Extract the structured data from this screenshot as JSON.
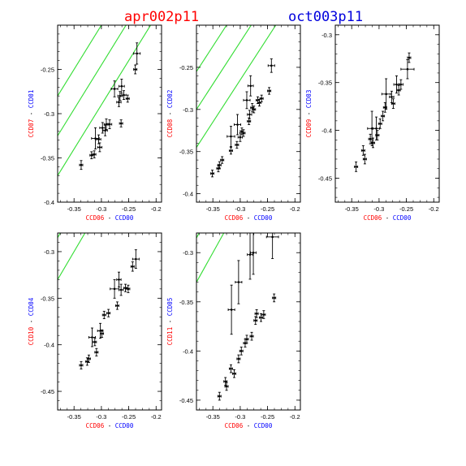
{
  "header": {
    "title_left": "apr002p11",
    "title_right": "oct003p11",
    "title_left_color": "#ff0000",
    "title_right_color": "#0000dd"
  },
  "colors": {
    "red": "#ff0000",
    "blue": "#0000ff",
    "guide_lines": "#33dd33",
    "data": "#000000"
  },
  "chart_data": [
    {
      "type": "scatter",
      "x_label_red": "CCD06",
      "x_label_blue": "CCD00",
      "y_label_red": "CCD07",
      "y_label_blue": "CCD01",
      "xlim": [
        -0.38,
        -0.19
      ],
      "ylim": [
        -0.4,
        -0.2
      ],
      "xticks": [
        -0.35,
        -0.3,
        -0.25,
        -0.2
      ],
      "yticks": [
        -0.4,
        -0.35,
        -0.3,
        -0.25
      ],
      "ytick_labels": [
        "-0.4",
        "-0.35",
        "-0.3",
        "-0.25"
      ],
      "guide_offsets": [
        0.01,
        0.055,
        0.1
      ],
      "points": [
        {
          "x": -0.337,
          "y": -0.358,
          "xerr": 0.003,
          "yerr": 0.005
        },
        {
          "x": -0.318,
          "y": -0.347,
          "xerr": 0.003,
          "yerr": 0.004
        },
        {
          "x": -0.313,
          "y": -0.346,
          "xerr": 0.003,
          "yerr": 0.004
        },
        {
          "x": -0.311,
          "y": -0.328,
          "xerr": 0.007,
          "yerr": 0.012
        },
        {
          "x": -0.305,
          "y": -0.329,
          "xerr": 0.004,
          "yerr": 0.005
        },
        {
          "x": -0.303,
          "y": -0.338,
          "xerr": 0.004,
          "yerr": 0.005
        },
        {
          "x": -0.298,
          "y": -0.316,
          "xerr": 0.005,
          "yerr": 0.006
        },
        {
          "x": -0.293,
          "y": -0.319,
          "xerr": 0.004,
          "yerr": 0.006
        },
        {
          "x": -0.291,
          "y": -0.312,
          "xerr": 0.004,
          "yerr": 0.006
        },
        {
          "x": -0.285,
          "y": -0.312,
          "xerr": 0.004,
          "yerr": 0.005
        },
        {
          "x": -0.276,
          "y": -0.272,
          "xerr": 0.006,
          "yerr": 0.009
        },
        {
          "x": -0.268,
          "y": -0.287,
          "xerr": 0.004,
          "yerr": 0.005
        },
        {
          "x": -0.266,
          "y": -0.28,
          "xerr": 0.004,
          "yerr": 0.005
        },
        {
          "x": -0.264,
          "y": -0.311,
          "xerr": 0.003,
          "yerr": 0.004
        },
        {
          "x": -0.263,
          "y": -0.269,
          "xerr": 0.005,
          "yerr": 0.008
        },
        {
          "x": -0.259,
          "y": -0.279,
          "xerr": 0.004,
          "yerr": 0.005
        },
        {
          "x": -0.252,
          "y": -0.283,
          "xerr": 0.003,
          "yerr": 0.004
        },
        {
          "x": -0.238,
          "y": -0.25,
          "xerr": 0.003,
          "yerr": 0.005
        },
        {
          "x": -0.235,
          "y": -0.232,
          "xerr": 0.006,
          "yerr": 0.012
        }
      ]
    },
    {
      "type": "scatter",
      "x_label_red": "CCD06",
      "x_label_blue": "CCD00",
      "y_label_red": "CCD08",
      "y_label_blue": "CCD02",
      "xlim": [
        -0.38,
        -0.19
      ],
      "ylim": [
        -0.41,
        -0.2
      ],
      "xticks": [
        -0.35,
        -0.3,
        -0.25,
        -0.2
      ],
      "yticks": [
        -0.4,
        -0.35,
        -0.3,
        -0.25
      ],
      "ytick_labels": [
        "-0.4",
        "-0.35",
        "-0.3",
        "-0.25"
      ],
      "guide_offsets": [
        0.035,
        0.08,
        0.125
      ],
      "points": [
        {
          "x": -0.351,
          "y": -0.376,
          "xerr": 0.003,
          "yerr": 0.004
        },
        {
          "x": -0.34,
          "y": -0.37,
          "xerr": 0.003,
          "yerr": 0.004
        },
        {
          "x": -0.338,
          "y": -0.366,
          "xerr": 0.003,
          "yerr": 0.004
        },
        {
          "x": -0.333,
          "y": -0.36,
          "xerr": 0.003,
          "yerr": 0.004
        },
        {
          "x": -0.317,
          "y": -0.349,
          "xerr": 0.003,
          "yerr": 0.004
        },
        {
          "x": -0.317,
          "y": -0.332,
          "xerr": 0.007,
          "yerr": 0.012
        },
        {
          "x": -0.305,
          "y": -0.318,
          "xerr": 0.006,
          "yerr": 0.012
        },
        {
          "x": -0.306,
          "y": -0.342,
          "xerr": 0.003,
          "yerr": 0.004
        },
        {
          "x": -0.3,
          "y": -0.333,
          "xerr": 0.004,
          "yerr": 0.005
        },
        {
          "x": -0.297,
          "y": -0.326,
          "xerr": 0.003,
          "yerr": 0.004
        },
        {
          "x": -0.294,
          "y": -0.328,
          "xerr": 0.003,
          "yerr": 0.004
        },
        {
          "x": -0.288,
          "y": -0.289,
          "xerr": 0.006,
          "yerr": 0.01
        },
        {
          "x": -0.281,
          "y": -0.272,
          "xerr": 0.005,
          "yerr": 0.012
        },
        {
          "x": -0.284,
          "y": -0.314,
          "xerr": 0.003,
          "yerr": 0.004
        },
        {
          "x": -0.283,
          "y": -0.306,
          "xerr": 0.004,
          "yerr": 0.005
        },
        {
          "x": -0.278,
          "y": -0.298,
          "xerr": 0.003,
          "yerr": 0.005
        },
        {
          "x": -0.275,
          "y": -0.3,
          "xerr": 0.003,
          "yerr": 0.004
        },
        {
          "x": -0.268,
          "y": -0.289,
          "xerr": 0.003,
          "yerr": 0.004
        },
        {
          "x": -0.265,
          "y": -0.292,
          "xerr": 0.003,
          "yerr": 0.004
        },
        {
          "x": -0.261,
          "y": -0.287,
          "xerr": 0.003,
          "yerr": 0.004
        },
        {
          "x": -0.247,
          "y": -0.278,
          "xerr": 0.003,
          "yerr": 0.004
        },
        {
          "x": -0.243,
          "y": -0.248,
          "xerr": 0.006,
          "yerr": 0.008
        }
      ]
    },
    {
      "type": "scatter",
      "x_label_red": "CCD06",
      "x_label_blue": "CCD00",
      "y_label_red": "CCD09",
      "y_label_blue": "CCD03",
      "xlim": [
        -0.38,
        -0.19
      ],
      "ylim": [
        -0.475,
        -0.29
      ],
      "xticks": [
        -0.35,
        -0.3,
        -0.25,
        -0.2
      ],
      "yticks": [
        -0.45,
        -0.4,
        -0.35,
        -0.3
      ],
      "ytick_labels": [
        "-0.45",
        "-0.4",
        "-0.35",
        "-0.3"
      ],
      "guide_offsets": [
        0.1,
        0.145,
        0.19
      ],
      "points": [
        {
          "x": -0.342,
          "y": -0.438,
          "xerr": 0.003,
          "yerr": 0.005
        },
        {
          "x": -0.329,
          "y": -0.421,
          "xerr": 0.003,
          "yerr": 0.005
        },
        {
          "x": -0.326,
          "y": -0.43,
          "xerr": 0.003,
          "yerr": 0.005
        },
        {
          "x": -0.313,
          "y": -0.398,
          "xerr": 0.008,
          "yerr": 0.018
        },
        {
          "x": -0.316,
          "y": -0.409,
          "xerr": 0.003,
          "yerr": 0.005
        },
        {
          "x": -0.311,
          "y": -0.413,
          "xerr": 0.003,
          "yerr": 0.005
        },
        {
          "x": -0.305,
          "y": -0.398,
          "xerr": 0.006,
          "yerr": 0.012
        },
        {
          "x": -0.303,
          "y": -0.405,
          "xerr": 0.003,
          "yerr": 0.005
        },
        {
          "x": -0.298,
          "y": -0.393,
          "xerr": 0.003,
          "yerr": 0.005
        },
        {
          "x": -0.293,
          "y": -0.385,
          "xerr": 0.003,
          "yerr": 0.005
        },
        {
          "x": -0.289,
          "y": -0.376,
          "xerr": 0.003,
          "yerr": 0.005
        },
        {
          "x": -0.287,
          "y": -0.362,
          "xerr": 0.008,
          "yerr": 0.016
        },
        {
          "x": -0.277,
          "y": -0.365,
          "xerr": 0.004,
          "yerr": 0.006
        },
        {
          "x": -0.274,
          "y": -0.372,
          "xerr": 0.003,
          "yerr": 0.005
        },
        {
          "x": -0.268,
          "y": -0.352,
          "xerr": 0.005,
          "yerr": 0.009
        },
        {
          "x": -0.264,
          "y": -0.358,
          "xerr": 0.003,
          "yerr": 0.005
        },
        {
          "x": -0.26,
          "y": -0.352,
          "xerr": 0.004,
          "yerr": 0.005
        },
        {
          "x": -0.248,
          "y": -0.336,
          "xerr": 0.012,
          "yerr": 0.01
        },
        {
          "x": -0.245,
          "y": -0.324,
          "xerr": 0.003,
          "yerr": 0.005
        }
      ]
    },
    {
      "type": "scatter",
      "x_label_red": "CCD06",
      "x_label_blue": "CCD00",
      "y_label_red": "CCD10",
      "y_label_blue": "CCD04",
      "xlim": [
        -0.38,
        -0.19
      ],
      "ylim": [
        -0.47,
        -0.28
      ],
      "xticks": [
        -0.35,
        -0.3,
        -0.25,
        -0.2
      ],
      "yticks": [
        -0.45,
        -0.4,
        -0.35,
        -0.3
      ],
      "ytick_labels": [
        "-0.45",
        "-0.4",
        "-0.35",
        "-0.3"
      ],
      "guide_offsets": [
        0.05,
        0.095,
        0.14
      ],
      "points": [
        {
          "x": -0.337,
          "y": -0.422,
          "xerr": 0.003,
          "yerr": 0.004
        },
        {
          "x": -0.326,
          "y": -0.418,
          "xerr": 0.003,
          "yerr": 0.004
        },
        {
          "x": -0.323,
          "y": -0.415,
          "xerr": 0.003,
          "yerr": 0.004
        },
        {
          "x": -0.317,
          "y": -0.392,
          "xerr": 0.006,
          "yerr": 0.01
        },
        {
          "x": -0.312,
          "y": -0.397,
          "xerr": 0.003,
          "yerr": 0.004
        },
        {
          "x": -0.309,
          "y": -0.408,
          "xerr": 0.003,
          "yerr": 0.004
        },
        {
          "x": -0.302,
          "y": -0.385,
          "xerr": 0.005,
          "yerr": 0.008
        },
        {
          "x": -0.299,
          "y": -0.388,
          "xerr": 0.003,
          "yerr": 0.004
        },
        {
          "x": -0.295,
          "y": -0.368,
          "xerr": 0.003,
          "yerr": 0.004
        },
        {
          "x": -0.287,
          "y": -0.366,
          "xerr": 0.003,
          "yerr": 0.004
        },
        {
          "x": -0.276,
          "y": -0.34,
          "xerr": 0.008,
          "yerr": 0.01
        },
        {
          "x": -0.268,
          "y": -0.33,
          "xerr": 0.004,
          "yerr": 0.008
        },
        {
          "x": -0.264,
          "y": -0.341,
          "xerr": 0.004,
          "yerr": 0.006
        },
        {
          "x": -0.271,
          "y": -0.358,
          "xerr": 0.003,
          "yerr": 0.004
        },
        {
          "x": -0.256,
          "y": -0.339,
          "xerr": 0.003,
          "yerr": 0.004
        },
        {
          "x": -0.251,
          "y": -0.34,
          "xerr": 0.003,
          "yerr": 0.004
        },
        {
          "x": -0.243,
          "y": -0.316,
          "xerr": 0.003,
          "yerr": 0.005
        },
        {
          "x": -0.237,
          "y": -0.308,
          "xerr": 0.006,
          "yerr": 0.01
        }
      ]
    },
    {
      "type": "scatter",
      "x_label_red": "CCD06",
      "x_label_blue": "CCD00",
      "y_label_red": "CCD11",
      "y_label_blue": "CCD05",
      "xlim": [
        -0.38,
        -0.19
      ],
      "ylim": [
        -0.46,
        -0.28
      ],
      "xticks": [
        -0.35,
        -0.3,
        -0.25,
        -0.2
      ],
      "yticks": [
        -0.45,
        -0.4,
        -0.35,
        -0.3
      ],
      "ytick_labels": [
        "-0.45",
        "-0.4",
        "-0.35",
        "-0.3"
      ],
      "guide_offsets": [
        0.05,
        0.095,
        0.14
      ],
      "points": [
        {
          "x": -0.338,
          "y": -0.446,
          "xerr": 0.003,
          "yerr": 0.004
        },
        {
          "x": -0.327,
          "y": -0.431,
          "xerr": 0.003,
          "yerr": 0.004
        },
        {
          "x": -0.325,
          "y": -0.436,
          "xerr": 0.003,
          "yerr": 0.004
        },
        {
          "x": -0.316,
          "y": -0.358,
          "xerr": 0.006,
          "yerr": 0.025
        },
        {
          "x": -0.317,
          "y": -0.418,
          "xerr": 0.003,
          "yerr": 0.004
        },
        {
          "x": -0.311,
          "y": -0.423,
          "xerr": 0.003,
          "yerr": 0.004
        },
        {
          "x": -0.303,
          "y": -0.33,
          "xerr": 0.006,
          "yerr": 0.022
        },
        {
          "x": -0.303,
          "y": -0.408,
          "xerr": 0.003,
          "yerr": 0.004
        },
        {
          "x": -0.298,
          "y": -0.4,
          "xerr": 0.003,
          "yerr": 0.004
        },
        {
          "x": -0.291,
          "y": -0.392,
          "xerr": 0.003,
          "yerr": 0.004
        },
        {
          "x": -0.288,
          "y": -0.388,
          "xerr": 0.003,
          "yerr": 0.004
        },
        {
          "x": -0.282,
          "y": -0.302,
          "xerr": 0.005,
          "yerr": 0.025
        },
        {
          "x": -0.276,
          "y": -0.3,
          "xerr": 0.005,
          "yerr": 0.022
        },
        {
          "x": -0.279,
          "y": -0.385,
          "xerr": 0.003,
          "yerr": 0.004
        },
        {
          "x": -0.272,
          "y": -0.369,
          "xerr": 0.003,
          "yerr": 0.004
        },
        {
          "x": -0.27,
          "y": -0.362,
          "xerr": 0.003,
          "yerr": 0.004
        },
        {
          "x": -0.262,
          "y": -0.366,
          "xerr": 0.003,
          "yerr": 0.004
        },
        {
          "x": -0.257,
          "y": -0.363,
          "xerr": 0.003,
          "yerr": 0.004
        },
        {
          "x": -0.241,
          "y": -0.284,
          "xerr": 0.011,
          "yerr": 0.022
        },
        {
          "x": -0.238,
          "y": -0.346,
          "xerr": 0.003,
          "yerr": 0.004
        }
      ]
    }
  ]
}
